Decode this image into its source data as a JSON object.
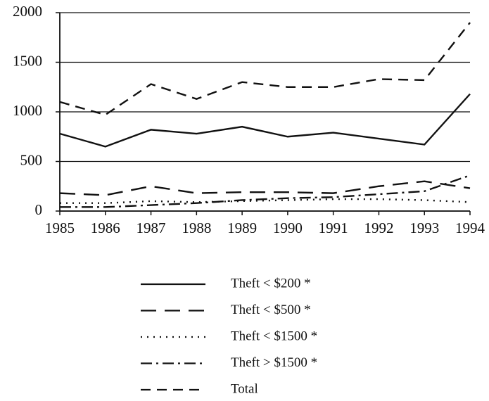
{
  "chart_data": {
    "type": "line",
    "categories": [
      "1985",
      "1986",
      "1987",
      "1988",
      "1989",
      "1990",
      "1991",
      "1992",
      "1993",
      "1994"
    ],
    "series": [
      {
        "name": "Theft < $200 *",
        "color": "#111111",
        "style": "solid",
        "values": [
          780,
          650,
          820,
          780,
          850,
          750,
          790,
          730,
          670,
          1180
        ]
      },
      {
        "name": "Theft < $500 *",
        "color": "#111111",
        "style": "long-dash",
        "values": [
          180,
          160,
          250,
          180,
          190,
          190,
          180,
          250,
          300,
          230
        ]
      },
      {
        "name": "Theft < $1500 *",
        "color": "#111111",
        "style": "dotted",
        "values": [
          80,
          80,
          100,
          90,
          100,
          110,
          120,
          120,
          110,
          90
        ]
      },
      {
        "name": "Theft > $1500 *",
        "color": "#111111",
        "style": "dash-dot",
        "values": [
          40,
          40,
          60,
          80,
          110,
          130,
          140,
          170,
          200,
          360
        ]
      },
      {
        "name": "Total",
        "color": "#111111",
        "style": "dashed",
        "values": [
          1100,
          970,
          1280,
          1130,
          1300,
          1250,
          1250,
          1330,
          1320,
          1900
        ]
      }
    ],
    "ylim": [
      0,
      2000
    ],
    "yticks": [
      0,
      500,
      1000,
      1500,
      2000
    ],
    "grid": true,
    "legend": "bottom"
  }
}
